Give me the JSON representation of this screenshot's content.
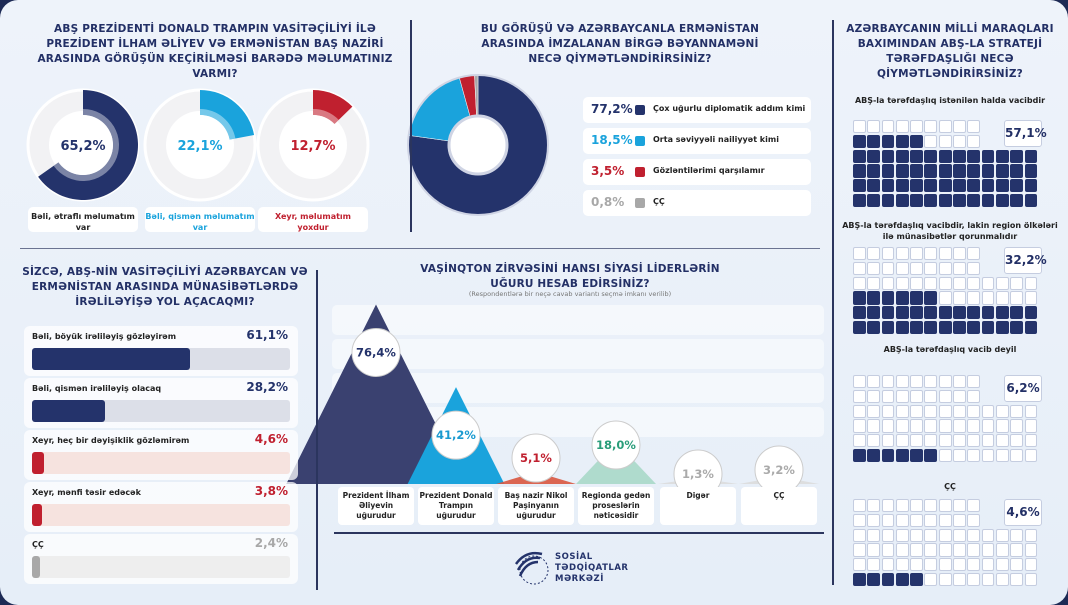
{
  "chart_data": [
    {
      "type": "pie",
      "title": "ABŞ PREZİDENTİ DONALD TRAMPIN VASİTƏÇİLİYİ İLƏ PREZİDENT İLHAM ƏLİYEV VƏ ERMƏNİSTAN BAŞ NAZİRİ ARASINDA GÖRÜŞÜN KEÇİRİLMƏSİ BARƏDƏ MƏLUMATINIZ VARMI?",
      "categories": [
        "Bəli, ətraflı məlumatım var",
        "Bəli, qismən məlumatım var",
        "Xeyr, məlumatım yoxdur"
      ],
      "values": [
        65.2,
        22.1,
        12.7
      ],
      "labels": [
        "65,2%",
        "22,1%",
        "12,7%"
      ],
      "colors": [
        "#24336b",
        "#1aa3dc",
        "#c0202f"
      ]
    },
    {
      "type": "pie",
      "title": "BU GÖRÜŞÜ VƏ AZƏRBAYCANLA ERMƏNİSTAN ARASINDA İMZALANAN BİRGƏ BƏYANNAMƏNİ NECƏ QİYMƏTLƏNDİRİRSİNİZ?",
      "categories": [
        "Çox uğurlu diplomatik addım kimi",
        "Orta səviyyəli nailiyyət kimi",
        "Gözləntilərimi qarşılamır",
        "ÇÇ"
      ],
      "values": [
        77.2,
        18.5,
        3.5,
        0.8
      ],
      "labels": [
        "77,2%",
        "18,5%",
        "3,5%",
        "0,8%"
      ],
      "colors": [
        "#24336b",
        "#1aa3dc",
        "#c0202f",
        "#a8a8a8"
      ]
    },
    {
      "type": "waffle",
      "title": "AZƏRBAYCANIN MİLLİ MARAQLARI BAXIMINDAN ABŞ-LA STRATEJİ TƏRƏFDAŞLIĞI NECƏ QİYMƏTLƏNDİRİRSİNİZ?",
      "categories": [
        "ABŞ-la tərəfdaşlıq istənilən halda vacibdir",
        "ABŞ-la tərəfdaşlıq vacibdir, lakin region ölkələri ilə münasibətlər qorunmalıdır",
        "ABŞ-la tərəfdaşlıq vacib deyil",
        "ÇÇ"
      ],
      "values": [
        57.1,
        32.2,
        6.2,
        4.6
      ],
      "labels": [
        "57,1%",
        "32,2%",
        "6,2%",
        "4,6%"
      ]
    },
    {
      "type": "bar",
      "title": "SİZCƏ, ABŞ-NİN VASİTƏÇİLİYİ AZƏRBAYCAN VƏ ERMƏNİSTAN ARASINDA MÜNASİBƏTLƏRDƏ İRƏLİLƏYİŞƏ YOL AÇACAQMI?",
      "categories": [
        "Bəli, böyük irəliləyiş gözləyirəm",
        "Bəli, qismən irəliləyiş olacaq",
        "Xeyr, heç bir dəyişiklik gözləmirəm",
        "Xeyr, mənfi təsir edəcək",
        "ÇÇ"
      ],
      "values": [
        61.1,
        28.2,
        4.6,
        3.8,
        2.4
      ],
      "labels": [
        "61,1%",
        "28,2%",
        "4,6%",
        "3,8%",
        "2,4%"
      ],
      "colors": [
        "#24336b",
        "#24336b",
        "#c0202f",
        "#c0202f",
        "#a8a8a8"
      ],
      "tracks": [
        "#dcdfe8",
        "#dcdfe8",
        "#f6e3df",
        "#f6e3df",
        "#eeeeee"
      ],
      "xlim": [
        0,
        100
      ]
    },
    {
      "type": "area",
      "title": "VAŞİNQTON ZİRVƏSİNİ HANSI SİYASİ LİDERLƏRİN UĞURU HESAB EDİRSİNİZ?",
      "subtitle": "(Respondentlərə bir neçə cavab variantı seçmə imkanı verilib)",
      "categories": [
        "Prezident İlham Əliyevin uğurudur",
        "Prezident Donald Trampın uğurudur",
        "Baş nazir Nikol Paşinyanın uğurudur",
        "Regionda gedən proseslərin nəticəsidir",
        "Digər",
        "ÇÇ"
      ],
      "values": [
        76.4,
        41.2,
        5.1,
        18.0,
        1.3,
        3.2
      ],
      "labels": [
        "76,4%",
        "41,2%",
        "5,1%",
        "18,0%",
        "1,3%",
        "3,2%"
      ],
      "colors": [
        "#3a4170",
        "#1aa3dc",
        "#d9573f",
        "#a9d8c8",
        "#dcdcdc",
        "#dcdcdc"
      ],
      "text_colors": [
        "#24336b",
        "#1a9ad0",
        "#c0202f",
        "#2a9d7a",
        "#aaaaaa",
        "#aaaaaa"
      ]
    }
  ],
  "logo": {
    "lines": [
      "SOSİAL",
      "TƏDQİQATLAR",
      "MƏRKƏZİ"
    ]
  }
}
